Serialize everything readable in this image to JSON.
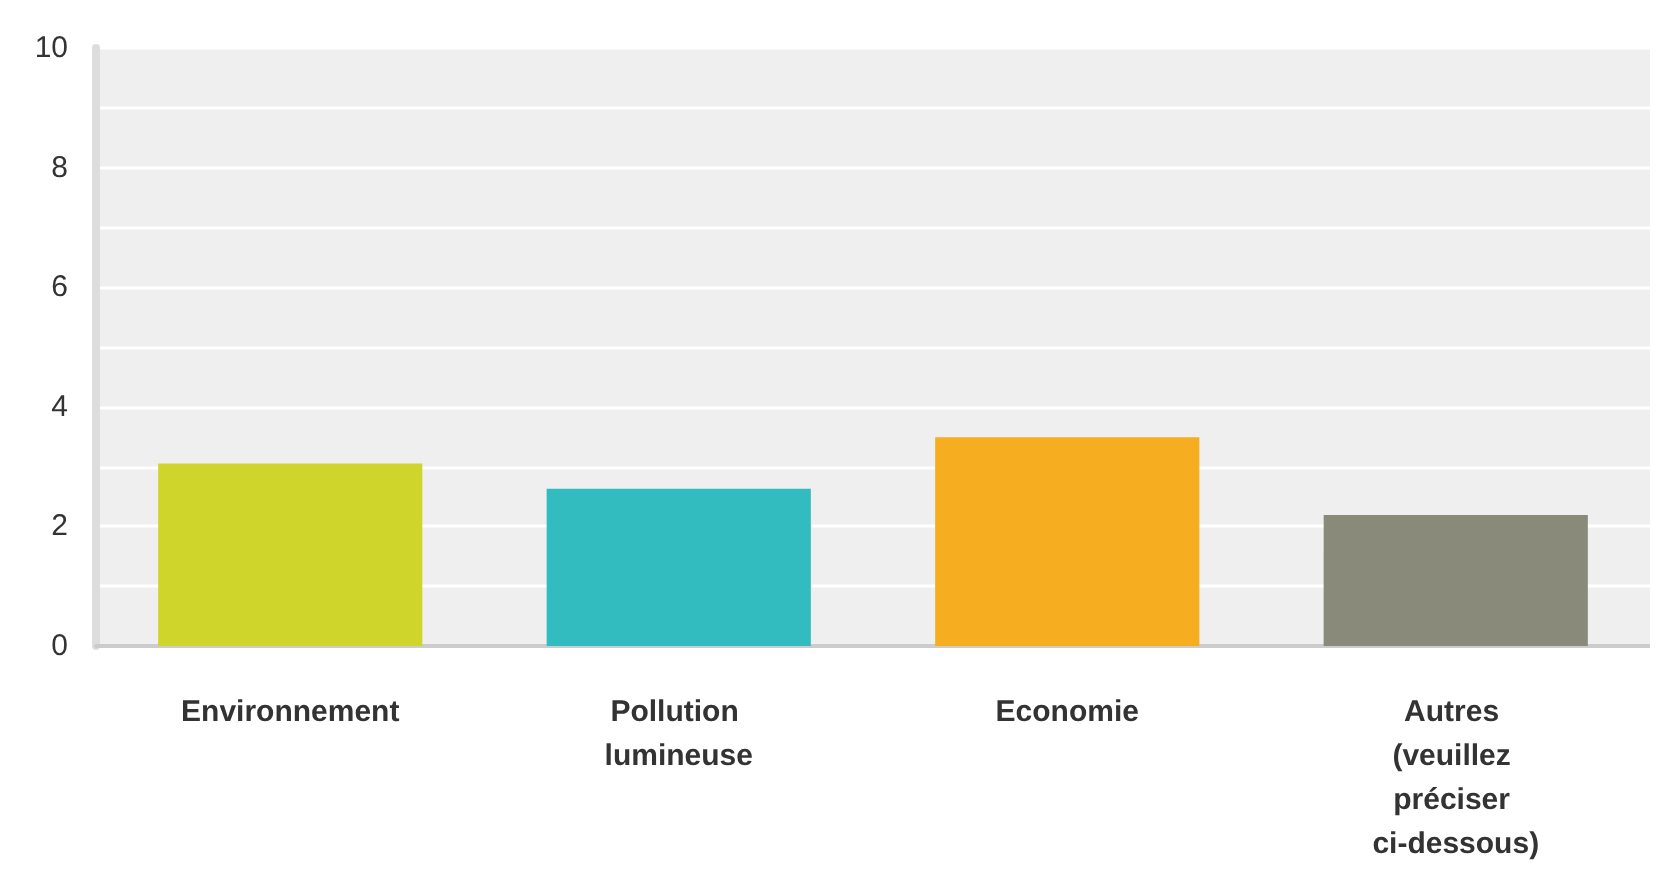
{
  "chart_data": {
    "type": "bar",
    "categories": [
      "Environnement",
      "Pollution lumineuse",
      "Economie",
      "Autres (veuillez préciser ci-dessous)"
    ],
    "values": [
      3.05,
      2.63,
      3.49,
      2.19
    ],
    "colors": [
      "#cfd52a",
      "#33bcbf",
      "#f6ae20",
      "#8a8a7a"
    ],
    "ylim": [
      0,
      10
    ],
    "yticks": [
      0,
      {
        "value": 1,
        "label": null
      },
      2,
      {
        "value": 3,
        "label": null
      },
      4,
      {
        "value": 5,
        "label": null
      },
      6,
      {
        "value": 7,
        "label": null
      },
      8,
      {
        "value": 9,
        "label": null
      },
      10
    ],
    "grid": "y"
  }
}
